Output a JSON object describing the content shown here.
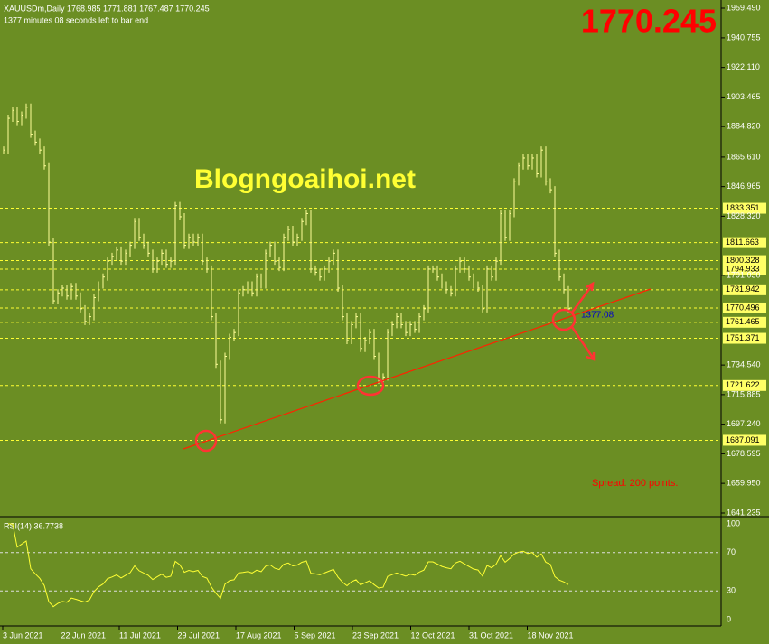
{
  "header": {
    "symbol_line": "XAUUSDm,Daily  1768.985 1771.881 1767.487 1770.245",
    "timer_line": "1377 minutes 08 seconds left to bar end",
    "big_price": "1770.245"
  },
  "watermark": "Blogngoaihoi.net",
  "bar_timer": "1377:08",
  "spread": "Spread: 200 points.",
  "price_axis": {
    "range": [
      1641.235,
      1959.49
    ],
    "ticks": [
      1959.49,
      1940.755,
      1922.11,
      1903.465,
      1884.82,
      1865.61,
      1846.965,
      1828.32,
      1791.03,
      1734.54,
      1715.885,
      1697.24,
      1678.595,
      1659.95,
      1641.235
    ],
    "tick_labels": [
      "1959.490",
      "1940.755",
      "1922.110",
      "1903.465",
      "1884.820",
      "1865.610",
      "1846.965",
      "1828.320",
      "1791.030",
      "1734.540",
      "1715.885",
      "1697.240",
      "1678.595",
      "1659.950",
      "1641.235"
    ]
  },
  "levels": [
    {
      "value": 1833.351,
      "label": "1833.351"
    },
    {
      "value": 1811.663,
      "label": "1811.663"
    },
    {
      "value": 1800.328,
      "label": "1800.328"
    },
    {
      "value": 1794.933,
      "label": "1794.933"
    },
    {
      "value": 1781.942,
      "label": "1781.942"
    },
    {
      "value": 1770.496,
      "label": "1770.496"
    },
    {
      "value": 1761.465,
      "label": "1761.465"
    },
    {
      "value": 1751.371,
      "label": "1751.371"
    },
    {
      "value": 1721.622,
      "label": "1721.622"
    },
    {
      "value": 1687.091,
      "label": "1687.091"
    }
  ],
  "closes": [
    1870,
    1890,
    1895,
    1888,
    1892,
    1897,
    1880,
    1875,
    1870,
    1860,
    1812,
    1775,
    1780,
    1783,
    1778,
    1784,
    1778,
    1770,
    1762,
    1765,
    1777,
    1785,
    1790,
    1800,
    1803,
    1807,
    1800,
    1805,
    1810,
    1825,
    1815,
    1810,
    1805,
    1795,
    1800,
    1805,
    1798,
    1800,
    1835,
    1828,
    1810,
    1815,
    1812,
    1815,
    1800,
    1795,
    1765,
    1735,
    1700,
    1740,
    1752,
    1755,
    1780,
    1782,
    1785,
    1780,
    1790,
    1785,
    1805,
    1810,
    1800,
    1796,
    1815,
    1820,
    1812,
    1815,
    1825,
    1830,
    1795,
    1793,
    1790,
    1795,
    1800,
    1805,
    1783,
    1765,
    1750,
    1760,
    1765,
    1745,
    1750,
    1755,
    1740,
    1725,
    1727,
    1755,
    1760,
    1765,
    1760,
    1755,
    1760,
    1757,
    1765,
    1770,
    1795,
    1795,
    1790,
    1785,
    1782,
    1780,
    1795,
    1800,
    1795,
    1790,
    1785,
    1783,
    1770,
    1795,
    1790,
    1800,
    1830,
    1815,
    1830,
    1850,
    1860,
    1865,
    1860,
    1865,
    1855,
    1870,
    1850,
    1845,
    1805,
    1790,
    1782,
    1770
  ],
  "rsi": {
    "label": "RSI(14) 36.7738",
    "ticks": [
      100,
      70,
      30,
      0
    ],
    "range": [
      0,
      100
    ]
  },
  "dates": [
    "3 Jun 2021",
    "22 Jun 2021",
    "11 Jul 2021",
    "29 Jul 2021",
    "17 Aug 2021",
    "5 Sep 2021",
    "23 Sep 2021",
    "12 Oct 2021",
    "31 Oct 2021",
    "18 Nov 2021"
  ]
}
